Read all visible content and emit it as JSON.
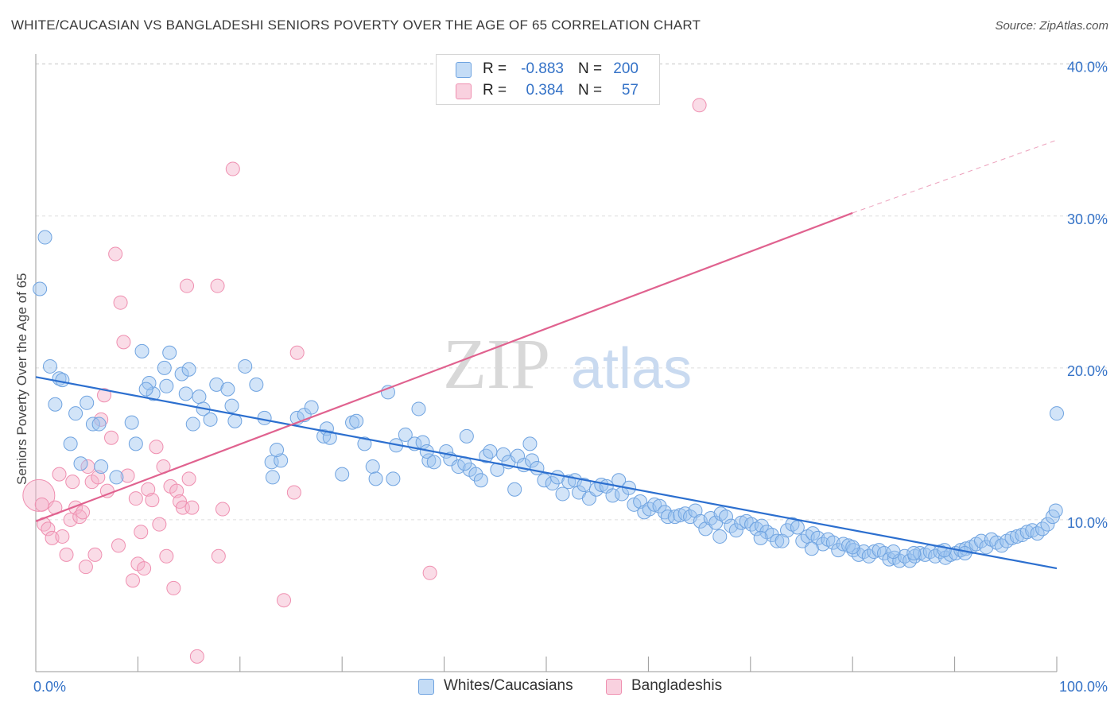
{
  "title": "WHITE/CAUCASIAN VS BANGLADESHI SENIORS POVERTY OVER THE AGE OF 65 CORRELATION CHART",
  "source": "Source: ZipAtlas.com",
  "watermark": {
    "zip": "ZIP",
    "atlas": "atlas"
  },
  "legend_top": [
    {
      "r_label": "R =",
      "r_value": "-0.883",
      "n_label": "N =",
      "n_value": "200",
      "color": "#6fa3e0"
    },
    {
      "r_label": "R =",
      "r_value": "0.384",
      "n_label": "N =",
      "n_value": "57",
      "color": "#ef8fb0"
    }
  ],
  "legend_bottom": [
    {
      "label": "Whites/Caucasians",
      "color": "#6fa3e0"
    },
    {
      "label": "Bangladeshis",
      "color": "#ef8fb0"
    }
  ],
  "colors": {
    "blue_fill": "rgba(156,196,240,0.45)",
    "blue_stroke": "#6fa3e0",
    "blue_line": "#2c6fcf",
    "pink_fill": "rgba(245,178,202,0.45)",
    "pink_stroke": "#ef8fb0",
    "pink_line": "#e0628f",
    "tick_label": "#3472c7",
    "grid": "#dddddd"
  },
  "chart_data": {
    "type": "scatter",
    "title": "WHITE/CAUCASIAN VS BANGLADESHI SENIORS POVERTY OVER THE AGE OF 65 CORRELATION CHART",
    "xlabel": "",
    "ylabel": "Seniors Poverty Over the Age of 65",
    "xlim": [
      0,
      100
    ],
    "ylim": [
      0,
      40
    ],
    "x_tick_labels": [
      "0.0%",
      "100.0%"
    ],
    "y_ticks": [
      10,
      20,
      30,
      40
    ],
    "y_tick_labels": [
      "10.0%",
      "20.0%",
      "30.0%",
      "40.0%"
    ],
    "grid": true,
    "legend_position": "top-center",
    "series": [
      {
        "name": "Whites/Caucasians",
        "points": [
          [
            0.9,
            28.6
          ],
          [
            0.4,
            25.2
          ],
          [
            1.4,
            20.1
          ],
          [
            2.3,
            19.3
          ],
          [
            1.9,
            17.6
          ],
          [
            5.0,
            17.7
          ],
          [
            3.9,
            17.0
          ],
          [
            5.6,
            16.3
          ],
          [
            6.2,
            16.3
          ],
          [
            9.4,
            16.4
          ],
          [
            3.4,
            15.0
          ],
          [
            4.4,
            13.7
          ],
          [
            6.4,
            13.5
          ],
          [
            7.9,
            12.8
          ],
          [
            2.6,
            19.2
          ],
          [
            10.4,
            21.1
          ],
          [
            13.1,
            21.0
          ],
          [
            11.5,
            18.3
          ],
          [
            12.8,
            18.8
          ],
          [
            12.6,
            20.0
          ],
          [
            14.3,
            19.6
          ],
          [
            15.0,
            19.9
          ],
          [
            11.1,
            19.0
          ],
          [
            14.7,
            18.3
          ],
          [
            16.0,
            18.1
          ],
          [
            9.8,
            15.0
          ],
          [
            10.8,
            18.6
          ],
          [
            16.4,
            17.3
          ],
          [
            15.4,
            16.3
          ],
          [
            17.1,
            16.6
          ],
          [
            17.7,
            18.9
          ],
          [
            18.8,
            18.6
          ],
          [
            19.2,
            17.5
          ],
          [
            19.5,
            16.5
          ],
          [
            20.5,
            20.1
          ],
          [
            21.6,
            18.9
          ],
          [
            22.4,
            16.7
          ],
          [
            23.1,
            13.8
          ],
          [
            24.0,
            13.9
          ],
          [
            23.6,
            14.6
          ],
          [
            25.6,
            16.7
          ],
          [
            26.3,
            16.9
          ],
          [
            23.2,
            12.8
          ],
          [
            27.0,
            17.4
          ],
          [
            28.2,
            15.5
          ],
          [
            28.5,
            16.0
          ],
          [
            28.8,
            15.4
          ],
          [
            30.0,
            13.0
          ],
          [
            31.0,
            16.4
          ],
          [
            31.4,
            16.5
          ],
          [
            32.2,
            15.0
          ],
          [
            33.0,
            13.5
          ],
          [
            33.3,
            12.7
          ],
          [
            34.5,
            18.4
          ],
          [
            35.0,
            12.7
          ],
          [
            35.3,
            14.9
          ],
          [
            36.2,
            15.6
          ],
          [
            37.1,
            15.0
          ],
          [
            37.9,
            15.1
          ],
          [
            38.5,
            13.9
          ],
          [
            38.3,
            14.5
          ],
          [
            39.0,
            13.8
          ],
          [
            40.2,
            14.5
          ],
          [
            40.6,
            14.0
          ],
          [
            41.4,
            13.5
          ],
          [
            37.5,
            17.3
          ],
          [
            42.2,
            15.5
          ],
          [
            42.5,
            13.3
          ],
          [
            43.1,
            13.0
          ],
          [
            43.6,
            12.6
          ],
          [
            42.0,
            13.7
          ],
          [
            44.1,
            14.2
          ],
          [
            44.5,
            14.5
          ],
          [
            45.2,
            13.3
          ],
          [
            45.8,
            14.3
          ],
          [
            46.3,
            13.8
          ],
          [
            47.2,
            14.2
          ],
          [
            46.9,
            12.0
          ],
          [
            47.8,
            13.6
          ],
          [
            48.4,
            15.0
          ],
          [
            48.6,
            13.9
          ],
          [
            49.1,
            13.4
          ],
          [
            49.8,
            12.6
          ],
          [
            50.6,
            12.4
          ],
          [
            51.1,
            12.8
          ],
          [
            51.6,
            11.7
          ],
          [
            52.2,
            12.5
          ],
          [
            52.8,
            12.6
          ],
          [
            53.2,
            11.8
          ],
          [
            53.7,
            12.3
          ],
          [
            54.2,
            11.4
          ],
          [
            54.9,
            12.0
          ],
          [
            55.4,
            12.3
          ],
          [
            55.9,
            12.2
          ],
          [
            56.5,
            11.6
          ],
          [
            57.1,
            12.6
          ],
          [
            57.4,
            11.7
          ],
          [
            58.1,
            12.1
          ],
          [
            58.6,
            11.0
          ],
          [
            59.2,
            11.2
          ],
          [
            59.6,
            10.5
          ],
          [
            60.1,
            10.7
          ],
          [
            60.6,
            11.0
          ],
          [
            61.1,
            10.9
          ],
          [
            61.6,
            10.5
          ],
          [
            61.9,
            10.2
          ],
          [
            62.6,
            10.2
          ],
          [
            63.1,
            10.3
          ],
          [
            63.6,
            10.4
          ],
          [
            64.1,
            10.2
          ],
          [
            64.6,
            10.6
          ],
          [
            65.1,
            9.9
          ],
          [
            65.6,
            9.4
          ],
          [
            66.1,
            10.1
          ],
          [
            66.6,
            9.8
          ],
          [
            67.1,
            10.4
          ],
          [
            67.6,
            10.2
          ],
          [
            68.1,
            9.6
          ],
          [
            68.6,
            9.3
          ],
          [
            69.1,
            9.8
          ],
          [
            69.6,
            9.9
          ],
          [
            70.1,
            9.7
          ],
          [
            70.6,
            9.4
          ],
          [
            71.1,
            9.6
          ],
          [
            71.6,
            9.2
          ],
          [
            72.1,
            9.0
          ],
          [
            72.6,
            8.6
          ],
          [
            73.1,
            8.6
          ],
          [
            73.6,
            9.3
          ],
          [
            74.1,
            9.7
          ],
          [
            74.6,
            9.5
          ],
          [
            75.1,
            8.6
          ],
          [
            75.6,
            8.9
          ],
          [
            76.1,
            9.1
          ],
          [
            76.6,
            8.8
          ],
          [
            77.1,
            8.4
          ],
          [
            77.6,
            8.7
          ],
          [
            78.1,
            8.5
          ],
          [
            78.6,
            8.0
          ],
          [
            79.1,
            8.4
          ],
          [
            79.6,
            8.3
          ],
          [
            80.1,
            8.0
          ],
          [
            80.6,
            7.7
          ],
          [
            81.1,
            7.9
          ],
          [
            81.6,
            7.6
          ],
          [
            82.1,
            7.9
          ],
          [
            82.6,
            8.0
          ],
          [
            83.1,
            7.8
          ],
          [
            83.6,
            7.4
          ],
          [
            84.1,
            7.5
          ],
          [
            84.6,
            7.3
          ],
          [
            85.1,
            7.6
          ],
          [
            85.6,
            7.3
          ],
          [
            86.1,
            7.6
          ],
          [
            86.6,
            7.8
          ],
          [
            87.1,
            7.7
          ],
          [
            87.6,
            7.9
          ],
          [
            88.1,
            7.6
          ],
          [
            88.6,
            7.9
          ],
          [
            89.1,
            7.5
          ],
          [
            89.6,
            7.7
          ],
          [
            90.1,
            7.8
          ],
          [
            90.6,
            8.0
          ],
          [
            91.1,
            8.1
          ],
          [
            91.6,
            8.2
          ],
          [
            92.1,
            8.4
          ],
          [
            92.6,
            8.6
          ],
          [
            93.1,
            8.2
          ],
          [
            93.6,
            8.7
          ],
          [
            94.1,
            8.5
          ],
          [
            94.6,
            8.3
          ],
          [
            95.1,
            8.6
          ],
          [
            95.6,
            8.8
          ],
          [
            96.1,
            8.9
          ],
          [
            96.6,
            9.0
          ],
          [
            97.1,
            9.2
          ],
          [
            97.6,
            9.3
          ],
          [
            98.1,
            9.1
          ],
          [
            98.6,
            9.4
          ],
          [
            99.1,
            9.7
          ],
          [
            99.6,
            10.2
          ],
          [
            99.9,
            10.6
          ],
          [
            100.0,
            17.0
          ],
          [
            67.0,
            8.9
          ],
          [
            71.0,
            8.8
          ],
          [
            76.0,
            8.1
          ],
          [
            80.0,
            8.2
          ],
          [
            84.0,
            7.9
          ],
          [
            86.0,
            7.8
          ],
          [
            89.0,
            8.0
          ],
          [
            91.0,
            7.8
          ]
        ],
        "trend": {
          "from": [
            0,
            19.4
          ],
          "to": [
            100,
            6.8
          ]
        }
      },
      {
        "name": "Bangladeshis",
        "points": [
          [
            0.3,
            11.6
          ],
          [
            0.8,
            9.7
          ],
          [
            1.2,
            9.4
          ],
          [
            1.6,
            8.8
          ],
          [
            1.9,
            10.8
          ],
          [
            2.3,
            13.0
          ],
          [
            2.6,
            8.9
          ],
          [
            3.0,
            7.7
          ],
          [
            3.4,
            10.0
          ],
          [
            3.6,
            12.5
          ],
          [
            3.9,
            10.8
          ],
          [
            4.3,
            10.2
          ],
          [
            4.6,
            10.5
          ],
          [
            4.9,
            6.9
          ],
          [
            5.1,
            13.5
          ],
          [
            5.5,
            12.5
          ],
          [
            5.8,
            7.7
          ],
          [
            6.1,
            12.8
          ],
          [
            6.4,
            16.6
          ],
          [
            6.7,
            18.2
          ],
          [
            7.0,
            11.9
          ],
          [
            7.4,
            15.4
          ],
          [
            7.8,
            27.5
          ],
          [
            8.1,
            8.3
          ],
          [
            8.3,
            24.3
          ],
          [
            8.6,
            21.7
          ],
          [
            9.0,
            12.9
          ],
          [
            9.5,
            6.0
          ],
          [
            9.8,
            11.4
          ],
          [
            10.0,
            7.1
          ],
          [
            10.3,
            9.2
          ],
          [
            10.6,
            6.8
          ],
          [
            11.0,
            12.0
          ],
          [
            11.4,
            11.3
          ],
          [
            11.8,
            14.8
          ],
          [
            12.1,
            9.7
          ],
          [
            12.5,
            13.5
          ],
          [
            12.8,
            7.6
          ],
          [
            13.2,
            12.2
          ],
          [
            13.5,
            5.5
          ],
          [
            13.8,
            11.9
          ],
          [
            14.1,
            11.2
          ],
          [
            14.4,
            10.8
          ],
          [
            15.0,
            12.7
          ],
          [
            15.3,
            10.8
          ],
          [
            14.8,
            25.4
          ],
          [
            15.8,
            1.0
          ],
          [
            17.8,
            25.4
          ],
          [
            17.9,
            7.6
          ],
          [
            18.3,
            10.7
          ],
          [
            19.3,
            33.1
          ],
          [
            24.3,
            4.7
          ],
          [
            25.3,
            11.8
          ],
          [
            25.6,
            21.0
          ],
          [
            38.6,
            6.5
          ],
          [
            65.0,
            37.3
          ],
          [
            0.6,
            11.0
          ]
        ],
        "trend": {
          "from": [
            0,
            9.9
          ],
          "to": [
            80,
            30.2
          ]
        },
        "trend_dashed_to": [
          100,
          35.0
        ]
      }
    ]
  },
  "icons": {
    "legend_swatch": "square-swatch-icon"
  }
}
